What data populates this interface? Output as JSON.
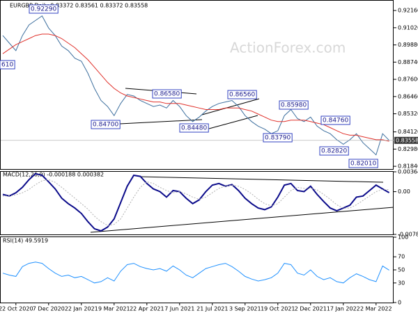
{
  "chart_data": [
    {
      "type": "line",
      "title": "EURGBP,Daily  0.83372 0.83561 0.83372 0.83558",
      "watermark": "ActionForex.com",
      "ylim": [
        0.8166,
        0.9281
      ],
      "yticks": [
        {
          "value": 0.9216,
          "label": "0.92160"
        },
        {
          "value": 0.9102,
          "label": "0.91020"
        },
        {
          "value": 0.8988,
          "label": "0.89880"
        },
        {
          "value": 0.8874,
          "label": "0.88740"
        },
        {
          "value": 0.876,
          "label": "0.87600"
        },
        {
          "value": 0.8646,
          "label": "0.86460"
        },
        {
          "value": 0.8532,
          "label": "0.85320"
        },
        {
          "value": 0.8412,
          "label": "0.84120"
        },
        {
          "value": 0.8298,
          "label": "0.82980"
        },
        {
          "value": 0.8184,
          "label": "0.81840"
        }
      ],
      "annotations": [
        "0.92290",
        "610",
        "0.84700",
        "0.86580",
        "0.84480",
        "0.86560",
        "0.83790",
        "0.85980",
        "0.84760",
        "0.82820",
        "0.82010"
      ],
      "series": [
        {
          "color": "#3d6f9e",
          "values": [
            0.905,
            0.9,
            0.895,
            0.905,
            0.912,
            0.915,
            0.918,
            0.91,
            0.905,
            0.898,
            0.895,
            0.89,
            0.888,
            0.88,
            0.87,
            0.862,
            0.858,
            0.852,
            0.86,
            0.866,
            0.865,
            0.862,
            0.86,
            0.858,
            0.859,
            0.857,
            0.862,
            0.858,
            0.852,
            0.848,
            0.851,
            0.855,
            0.858,
            0.86,
            0.861,
            0.862,
            0.858,
            0.852,
            0.848,
            0.845,
            0.843,
            0.84,
            0.842,
            0.852,
            0.856,
            0.85,
            0.848,
            0.851,
            0.845,
            0.842,
            0.84,
            0.836,
            0.833,
            0.836,
            0.84,
            0.834,
            0.83,
            0.826,
            0.84,
            0.83558
          ]
        },
        {
          "color": "#e0302a",
          "values": [
            0.893,
            0.896,
            0.899,
            0.901,
            0.903,
            0.905,
            0.906,
            0.906,
            0.905,
            0.903,
            0.9,
            0.897,
            0.893,
            0.889,
            0.884,
            0.879,
            0.874,
            0.87,
            0.867,
            0.865,
            0.864,
            0.863,
            0.862,
            0.861,
            0.861,
            0.86,
            0.86,
            0.86,
            0.859,
            0.858,
            0.857,
            0.856,
            0.856,
            0.856,
            0.857,
            0.857,
            0.857,
            0.856,
            0.855,
            0.853,
            0.851,
            0.849,
            0.848,
            0.848,
            0.849,
            0.849,
            0.849,
            0.848,
            0.847,
            0.846,
            0.844,
            0.842,
            0.84,
            0.839,
            0.839,
            0.838,
            0.837,
            0.836,
            0.836,
            0.835
          ]
        }
      ]
    },
    {
      "type": "line",
      "title": "MACD(12,26,9) -0.000188 0.000382",
      "ylim": [
        -0.007839,
        0.003641
      ],
      "yticks": [
        0.003641,
        {
          "value": 0,
          "label": "0.00"
        },
        -0.007839
      ],
      "series": [
        {
          "color": "#0a0a8a",
          "values": [
            -0.0005,
            -0.0008,
            -0.0002,
            0.0008,
            0.0022,
            0.0033,
            0.003,
            0.0018,
            0.0005,
            -0.0012,
            -0.0022,
            -0.003,
            -0.004,
            -0.0055,
            -0.0068,
            -0.0072,
            -0.0065,
            -0.005,
            -0.002,
            0.001,
            0.003,
            0.0028,
            0.0015,
            0.0005,
            0.0,
            -0.001,
            0.0002,
            0.0,
            -0.0012,
            -0.0022,
            -0.0015,
            0.0,
            0.0012,
            0.0015,
            0.001,
            0.0013,
            0.0002,
            -0.0012,
            -0.0022,
            -0.003,
            -0.0033,
            -0.0028,
            -0.001,
            0.0012,
            0.0015,
            0.0002,
            0.0,
            0.001,
            -0.0005,
            -0.0018,
            -0.003,
            -0.0035,
            -0.003,
            -0.0025,
            -0.001,
            -0.0008,
            0.0002,
            0.0012,
            0.0005,
            -0.000188
          ]
        },
        {
          "color": "#b0b0b0",
          "values": [
            -0.0008,
            -0.0008,
            -0.0006,
            -0.0002,
            0.0004,
            0.0013,
            0.002,
            0.0022,
            0.0017,
            0.0008,
            -0.0002,
            -0.0012,
            -0.0022,
            -0.0032,
            -0.0045,
            -0.0055,
            -0.0062,
            -0.006,
            -0.005,
            -0.003,
            -0.001,
            0.0008,
            0.0018,
            0.0015,
            0.0008,
            0.0002,
            -0.0002,
            0.0,
            -0.0004,
            -0.001,
            -0.0014,
            -0.001,
            -0.0002,
            0.0006,
            0.001,
            0.0012,
            0.001,
            0.0004,
            -0.0004,
            -0.0014,
            -0.0022,
            -0.0026,
            -0.0022,
            -0.001,
            0.0002,
            0.0008,
            0.0006,
            0.0006,
            0.0003,
            -0.0005,
            -0.0014,
            -0.0024,
            -0.003,
            -0.003,
            -0.0024,
            -0.0016,
            -0.0008,
            0.0,
            0.0004,
            0.000382
          ]
        }
      ]
    },
    {
      "type": "line",
      "title": "RSI(14) 49.5919",
      "ylim": [
        0,
        100
      ],
      "yticks": [
        100,
        70,
        50,
        30,
        0
      ],
      "categories": [
        null,
        null,
        "22 Oct 2020",
        null,
        null,
        null,
        null,
        "7 Dec 2020",
        null,
        null,
        null,
        null,
        "22 Jan 2021",
        null,
        null,
        null,
        null,
        "9 Mar 2021",
        null,
        null,
        null,
        null,
        "22 Apr 2021",
        null,
        null,
        null,
        null,
        "7 Jun 2021",
        null,
        null,
        null,
        null,
        "21 Jul 2021",
        null,
        null,
        null,
        null,
        "3 Sep 2021",
        null,
        null,
        null,
        null,
        "19 Oct 2021",
        null,
        null,
        null,
        null,
        "2 Dec 2021",
        null,
        null,
        null,
        null,
        "17 Jan 2022",
        null,
        null,
        null,
        null,
        "2 Mar 2022",
        null,
        null
      ],
      "series": [
        {
          "color": "#1e90ff",
          "values": [
            45,
            42,
            40,
            55,
            60,
            62,
            60,
            52,
            45,
            40,
            42,
            38,
            40,
            35,
            30,
            32,
            38,
            33,
            48,
            58,
            60,
            55,
            52,
            50,
            52,
            48,
            56,
            50,
            42,
            38,
            45,
            52,
            55,
            58,
            60,
            55,
            48,
            40,
            36,
            33,
            35,
            38,
            45,
            60,
            58,
            45,
            42,
            50,
            40,
            35,
            38,
            32,
            30,
            38,
            44,
            40,
            35,
            32,
            56,
            49.5919
          ]
        }
      ]
    }
  ]
}
